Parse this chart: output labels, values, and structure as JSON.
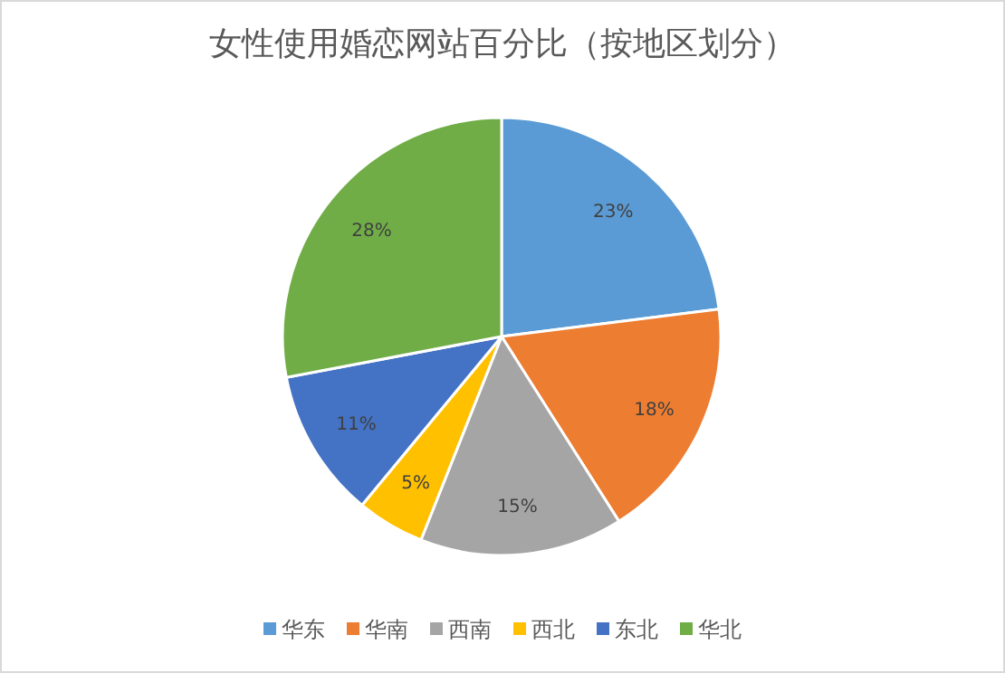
{
  "chart_data": {
    "type": "pie",
    "title": "女性使用婚恋网站百分比（按地区划分）",
    "categories": [
      "华东",
      "华南",
      "西南",
      "西北",
      "东北",
      "华北"
    ],
    "values": [
      23,
      18,
      15,
      5,
      11,
      28
    ],
    "value_labels": [
      "23%",
      "18%",
      "15%",
      "5%",
      "11%",
      "28%"
    ],
    "colors": [
      "#5b9bd5",
      "#ed7d31",
      "#a5a5a5",
      "#ffc000",
      "#4472c4",
      "#70ad47"
    ],
    "legend": "bottom"
  }
}
